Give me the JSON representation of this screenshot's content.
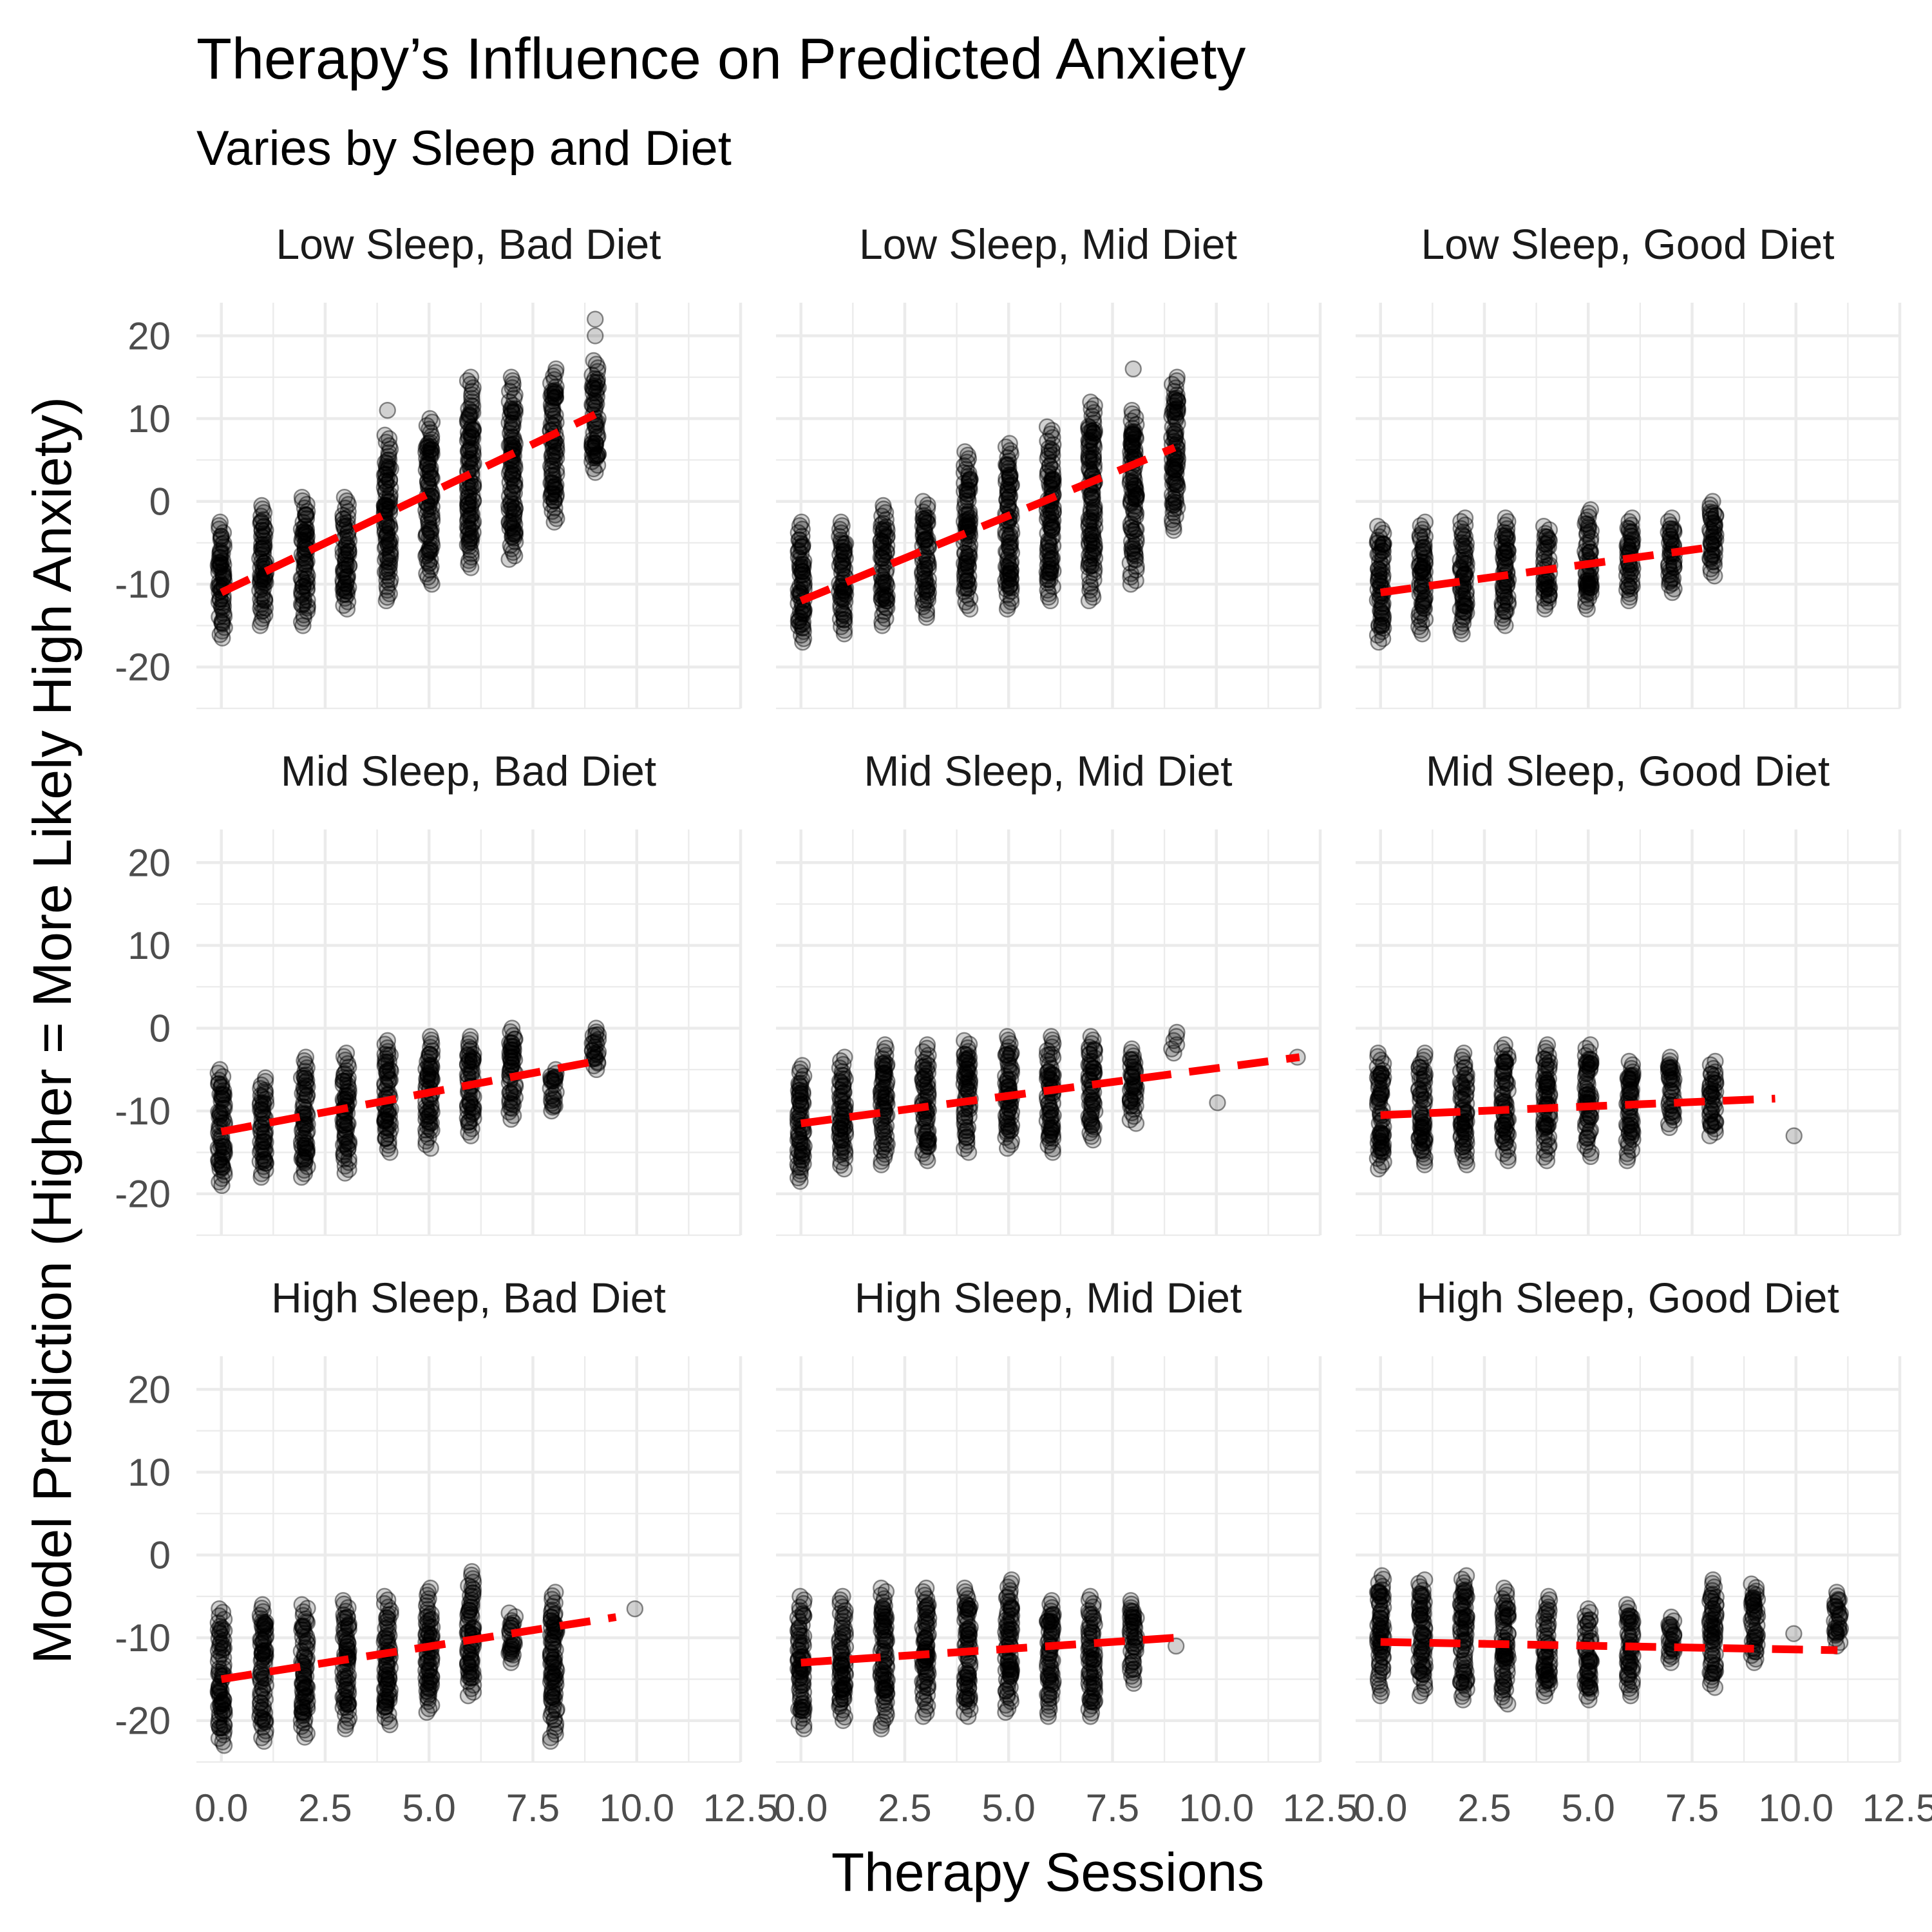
{
  "chart_data": {
    "type": "scatter",
    "title": "Therapy’s Influence on Predicted Anxiety",
    "subtitle": "Varies by Sleep and Diet",
    "xlabel": "Therapy Sessions",
    "ylabel": "Model Prediction (Higher = More Likely High Anxiety)",
    "xlim": [
      -0.6,
      12.5
    ],
    "ylim": [
      -25,
      24
    ],
    "x_ticks": [
      0,
      2.5,
      5,
      7.5,
      10,
      12.5
    ],
    "x_tick_labels": [
      "0.0",
      "2.5",
      "5.0",
      "7.5",
      "10.0",
      "12.5"
    ],
    "y_ticks": [
      -20,
      -10,
      0,
      10,
      20
    ],
    "y_tick_labels": [
      "-20",
      "-10",
      "0",
      "10",
      "20"
    ],
    "grid": true,
    "point_color": "#000000",
    "trend_color": "#ff0000",
    "trend_style": "dashed",
    "panels": [
      {
        "label": "Low Sleep, Bad Diet",
        "trend": {
          "x": [
            0,
            9
          ],
          "y": [
            -11,
            10.5
          ]
        },
        "clusters": [
          {
            "x": 0,
            "min": -16.5,
            "max": -2.5
          },
          {
            "x": 1,
            "min": -15,
            "max": -0.5
          },
          {
            "x": 2,
            "min": -15,
            "max": 0.5
          },
          {
            "x": 3,
            "min": -13,
            "max": 0.5
          },
          {
            "x": 4,
            "min": -12,
            "max": 8,
            "outliers": [
              11
            ]
          },
          {
            "x": 5,
            "min": -10,
            "max": 10
          },
          {
            "x": 6,
            "min": -8,
            "max": 15
          },
          {
            "x": 7,
            "min": -7,
            "max": 15
          },
          {
            "x": 8,
            "min": -2.5,
            "max": 16
          },
          {
            "x": 9,
            "min": 3.5,
            "max": 17,
            "outliers": [
              20,
              22
            ]
          }
        ]
      },
      {
        "label": "Low Sleep, Mid Diet",
        "trend": {
          "x": [
            0,
            9
          ],
          "y": [
            -12,
            6.5
          ]
        },
        "clusters": [
          {
            "x": 0,
            "min": -17,
            "max": -2.5
          },
          {
            "x": 1,
            "min": -16,
            "max": -2.5
          },
          {
            "x": 2,
            "min": -15,
            "max": -0.5
          },
          {
            "x": 3,
            "min": -14,
            "max": 0
          },
          {
            "x": 4,
            "min": -13,
            "max": 6
          },
          {
            "x": 5,
            "min": -13,
            "max": 7
          },
          {
            "x": 6,
            "min": -12,
            "max": 9
          },
          {
            "x": 7,
            "min": -12,
            "max": 12
          },
          {
            "x": 8,
            "min": -10,
            "max": 11,
            "outliers": [
              16
            ]
          },
          {
            "x": 9,
            "min": -3.5,
            "max": 15
          }
        ]
      },
      {
        "label": "Low Sleep, Good Diet",
        "trend": {
          "x": [
            0,
            8
          ],
          "y": [
            -11,
            -5.5
          ]
        },
        "clusters": [
          {
            "x": 0,
            "min": -17,
            "max": -3
          },
          {
            "x": 1,
            "min": -16,
            "max": -2.5
          },
          {
            "x": 2,
            "min": -16,
            "max": -2
          },
          {
            "x": 3,
            "min": -15,
            "max": -2
          },
          {
            "x": 4,
            "min": -13,
            "max": -3
          },
          {
            "x": 5,
            "min": -13,
            "max": -1
          },
          {
            "x": 6,
            "min": -12,
            "max": -2
          },
          {
            "x": 7,
            "min": -11,
            "max": -2
          },
          {
            "x": 8,
            "min": -9,
            "max": 0
          }
        ]
      },
      {
        "label": "Mid Sleep, Bad Diet",
        "trend": {
          "x": [
            0,
            9
          ],
          "y": [
            -12.5,
            -4
          ]
        },
        "clusters": [
          {
            "x": 0,
            "min": -19,
            "max": -5
          },
          {
            "x": 1,
            "min": -18,
            "max": -6
          },
          {
            "x": 2,
            "min": -18,
            "max": -3.5
          },
          {
            "x": 3,
            "min": -17.5,
            "max": -3
          },
          {
            "x": 4,
            "min": -15,
            "max": -1.5
          },
          {
            "x": 5,
            "min": -14.5,
            "max": -1
          },
          {
            "x": 6,
            "min": -13,
            "max": -1
          },
          {
            "x": 7,
            "min": -11,
            "max": 0
          },
          {
            "x": 8,
            "min": -10,
            "max": -5
          },
          {
            "x": 9,
            "min": -5,
            "max": 0
          }
        ]
      },
      {
        "label": "Mid Sleep, Mid Diet",
        "trend": {
          "x": [
            0,
            12
          ],
          "y": [
            -11.5,
            -3.5
          ]
        },
        "clusters": [
          {
            "x": 0,
            "min": -18.5,
            "max": -4.5
          },
          {
            "x": 1,
            "min": -17,
            "max": -3.5
          },
          {
            "x": 2,
            "min": -16.5,
            "max": -2
          },
          {
            "x": 3,
            "min": -16,
            "max": -2
          },
          {
            "x": 4,
            "min": -15,
            "max": -1.5
          },
          {
            "x": 5,
            "min": -14.5,
            "max": -1
          },
          {
            "x": 6,
            "min": -15,
            "max": -1
          },
          {
            "x": 7,
            "min": -13.5,
            "max": -1
          },
          {
            "x": 8,
            "min": -11.5,
            "max": -2.5
          },
          {
            "x": 9,
            "min": -3,
            "max": -0.5
          },
          {
            "x": 10,
            "min": -9,
            "max": -9
          },
          {
            "x": 12,
            "min": -3.5,
            "max": -3.5
          }
        ]
      },
      {
        "label": "Mid Sleep, Good Diet",
        "trend": {
          "x": [
            0,
            9.5
          ],
          "y": [
            -10.5,
            -8.5
          ]
        },
        "clusters": [
          {
            "x": 0,
            "min": -17,
            "max": -3
          },
          {
            "x": 1,
            "min": -16.5,
            "max": -3
          },
          {
            "x": 2,
            "min": -16.5,
            "max": -3
          },
          {
            "x": 3,
            "min": -16,
            "max": -2
          },
          {
            "x": 4,
            "min": -16,
            "max": -2
          },
          {
            "x": 5,
            "min": -15.5,
            "max": -2
          },
          {
            "x": 6,
            "min": -16,
            "max": -4
          },
          {
            "x": 7,
            "min": -12,
            "max": -3.5
          },
          {
            "x": 8,
            "min": -13,
            "max": -4
          },
          {
            "x": 10,
            "min": -13,
            "max": -13
          }
        ]
      },
      {
        "label": "High Sleep, Bad Diet",
        "trend": {
          "x": [
            0,
            9.5
          ],
          "y": [
            -15,
            -7.5
          ]
        },
        "clusters": [
          {
            "x": 0,
            "min": -23,
            "max": -6.5
          },
          {
            "x": 1,
            "min": -22.5,
            "max": -6
          },
          {
            "x": 2,
            "min": -22,
            "max": -6
          },
          {
            "x": 3,
            "min": -21,
            "max": -5.5
          },
          {
            "x": 4,
            "min": -20.5,
            "max": -5
          },
          {
            "x": 5,
            "min": -19,
            "max": -4
          },
          {
            "x": 6,
            "min": -17,
            "max": -2
          },
          {
            "x": 7,
            "min": -13,
            "max": -7
          },
          {
            "x": 8,
            "min": -22.5,
            "max": -4.5
          },
          {
            "x": 10,
            "min": -6.5,
            "max": -6.5
          }
        ]
      },
      {
        "label": "High Sleep, Mid Diet",
        "trend": {
          "x": [
            0,
            9
          ],
          "y": [
            -13,
            -10
          ]
        },
        "clusters": [
          {
            "x": 0,
            "min": -21,
            "max": -5
          },
          {
            "x": 1,
            "min": -20,
            "max": -5
          },
          {
            "x": 2,
            "min": -21,
            "max": -4
          },
          {
            "x": 3,
            "min": -19.5,
            "max": -4
          },
          {
            "x": 4,
            "min": -19.5,
            "max": -4
          },
          {
            "x": 5,
            "min": -19,
            "max": -3
          },
          {
            "x": 6,
            "min": -19.5,
            "max": -5.5
          },
          {
            "x": 7,
            "min": -19.5,
            "max": -5
          },
          {
            "x": 8,
            "min": -15.5,
            "max": -5.5
          },
          {
            "x": 9,
            "min": -11,
            "max": -11
          }
        ]
      },
      {
        "label": "High Sleep, Good Diet",
        "trend": {
          "x": [
            0,
            11
          ],
          "y": [
            -10.5,
            -11.5
          ]
        },
        "clusters": [
          {
            "x": 0,
            "min": -17,
            "max": -2.5
          },
          {
            "x": 1,
            "min": -17,
            "max": -3
          },
          {
            "x": 2,
            "min": -17.5,
            "max": -2.5
          },
          {
            "x": 3,
            "min": -18,
            "max": -4
          },
          {
            "x": 4,
            "min": -17,
            "max": -5
          },
          {
            "x": 5,
            "min": -17.5,
            "max": -6.5
          },
          {
            "x": 6,
            "min": -17,
            "max": -6
          },
          {
            "x": 7,
            "min": -13,
            "max": -7.5
          },
          {
            "x": 8,
            "min": -16,
            "max": -3
          },
          {
            "x": 9,
            "min": -13,
            "max": -3.5
          },
          {
            "x": 10,
            "min": -9.5,
            "max": -9.5
          },
          {
            "x": 11,
            "min": -11,
            "max": -4.5
          }
        ]
      }
    ]
  }
}
